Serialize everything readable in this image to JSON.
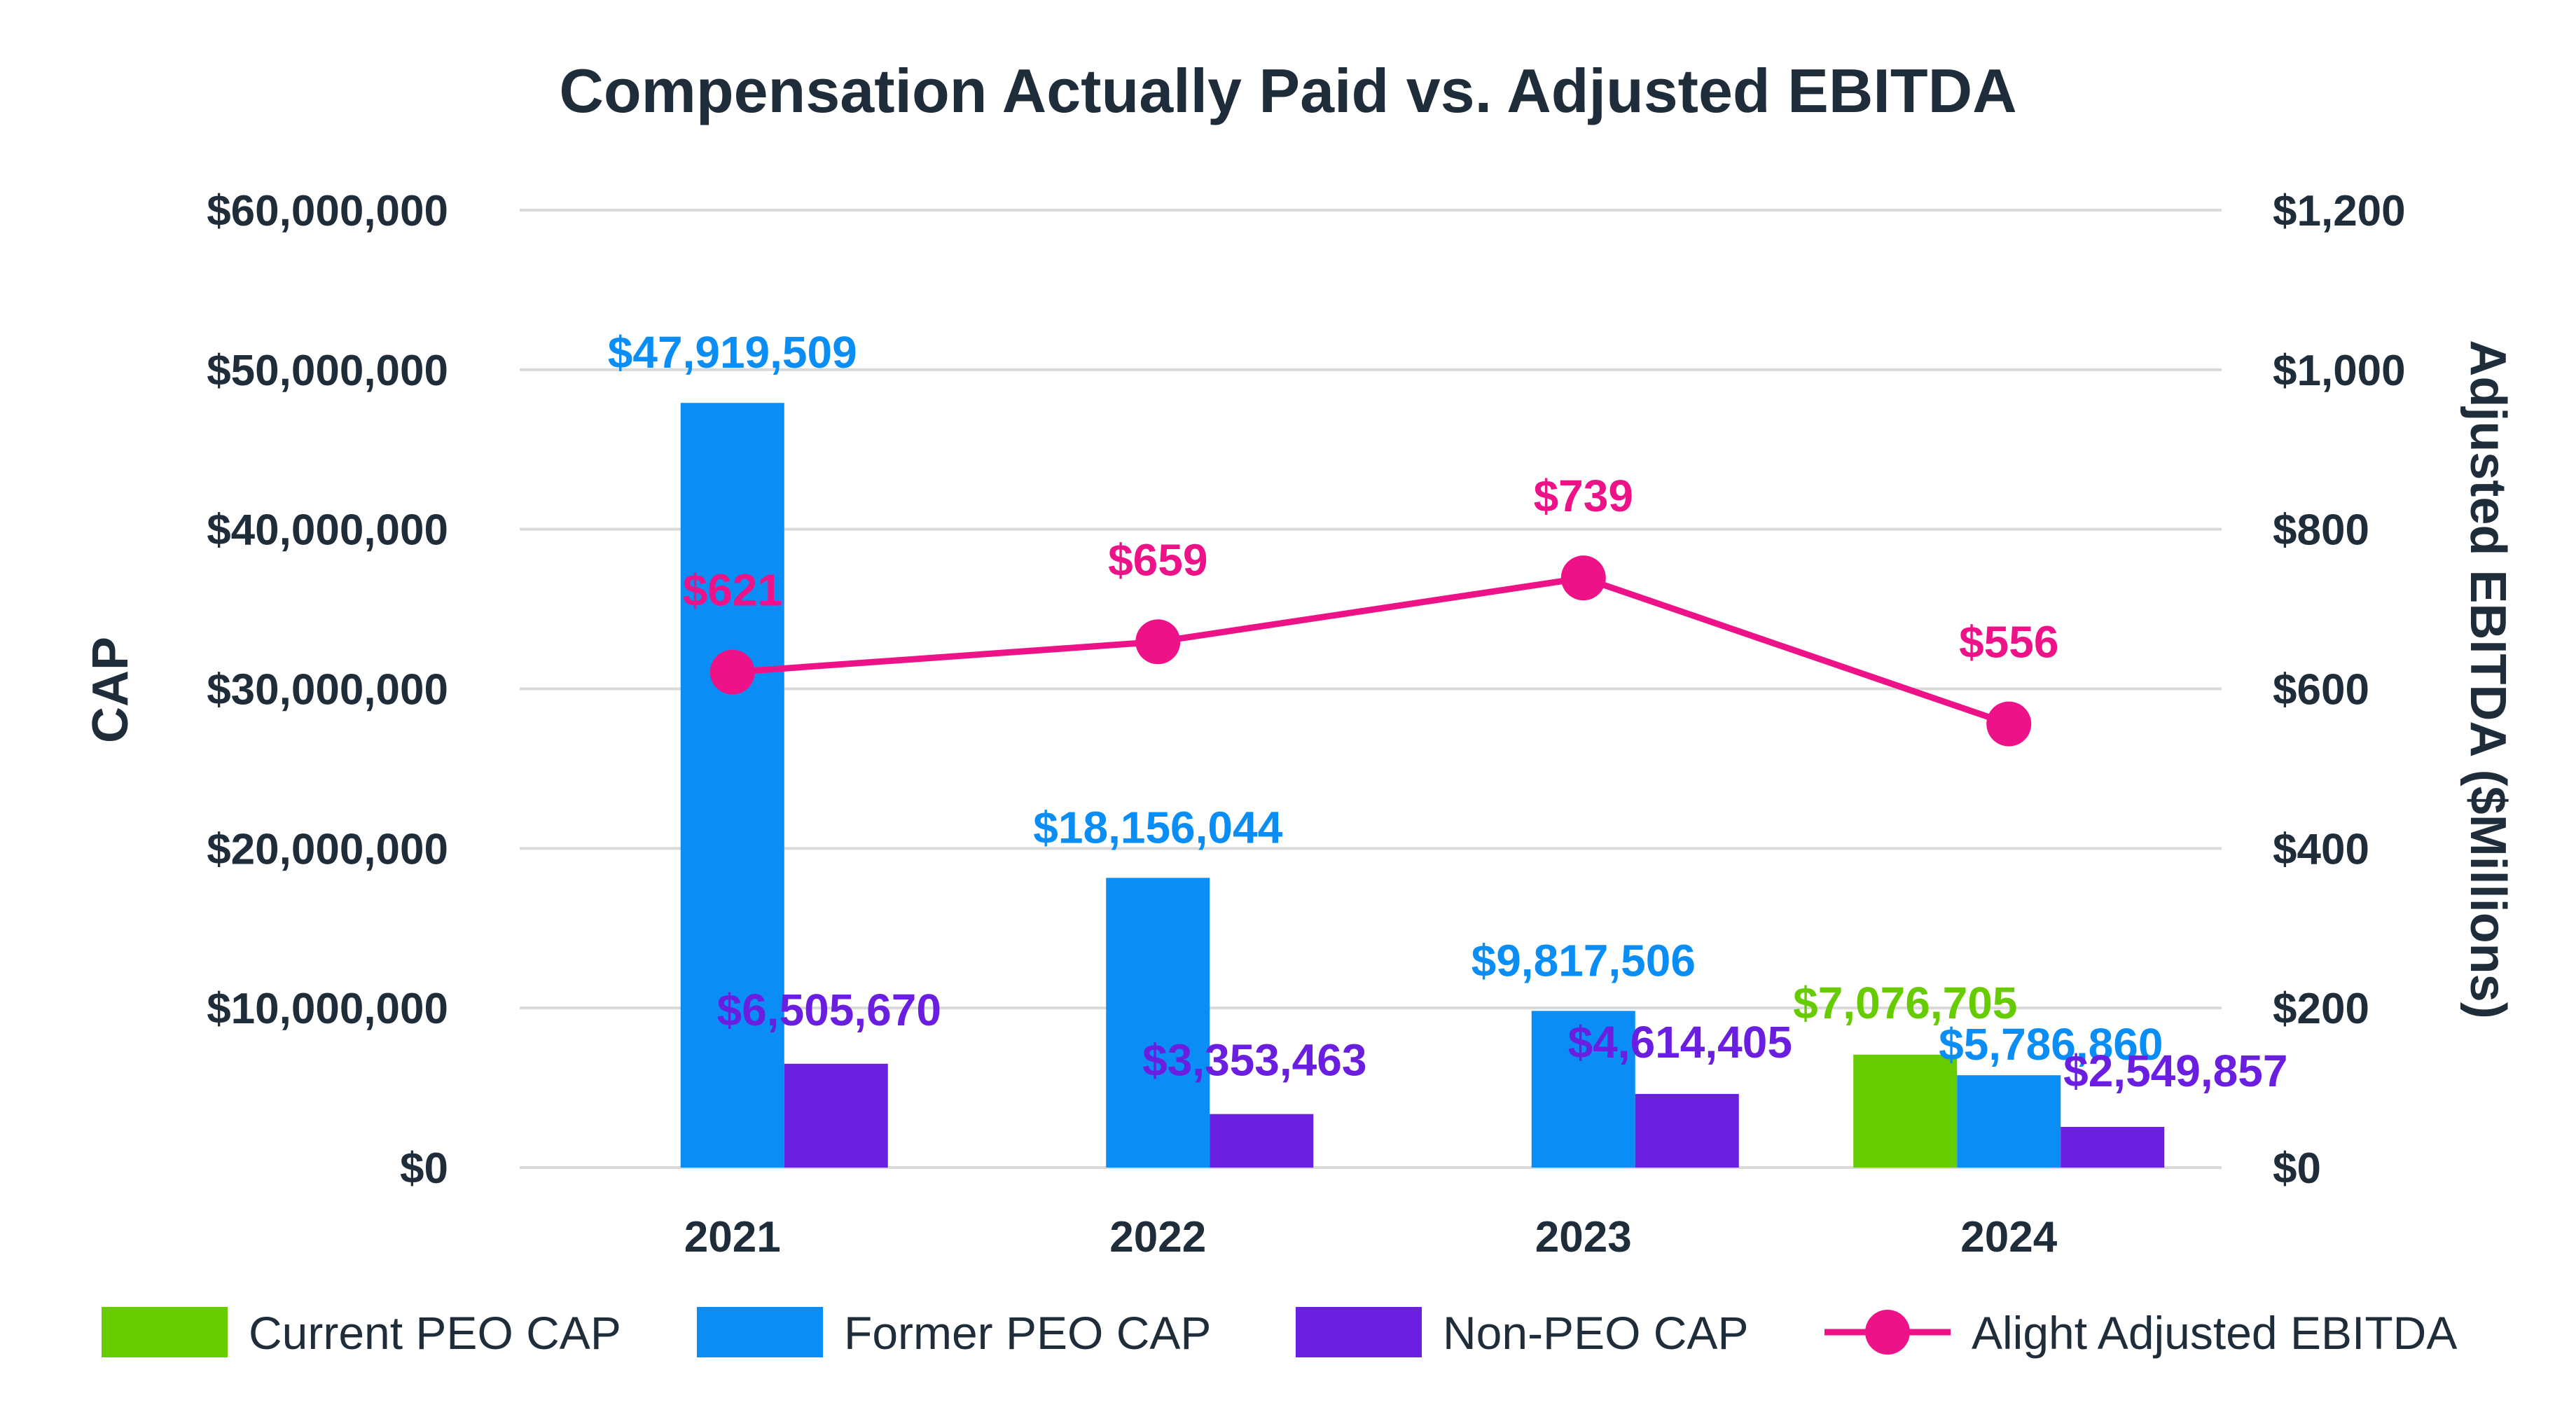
{
  "chart_data": {
    "type": "bar",
    "title": "Compensation Actually Paid vs. Adjusted EBITDA",
    "categories": [
      "2021",
      "2022",
      "2023",
      "2024"
    ],
    "ylabel": "CAP",
    "y2label": "Adjusted EBITDA ($Millions)",
    "ylim": [
      0,
      60000000
    ],
    "y2lim": [
      0,
      1200
    ],
    "yticks": [
      "$0",
      "$10,000,000",
      "$20,000,000",
      "$30,000,000",
      "$40,000,000",
      "$50,000,000",
      "$60,000,000"
    ],
    "ytick_values": [
      0,
      10000000,
      20000000,
      30000000,
      40000000,
      50000000,
      60000000
    ],
    "y2ticks": [
      "$0",
      "$200",
      "$400",
      "$600",
      "$800",
      "$1,000",
      "$1,200"
    ],
    "y2tick_values": [
      0,
      200,
      400,
      600,
      800,
      1000,
      1200
    ],
    "grid": true,
    "legend_position": "bottom",
    "series": [
      {
        "name": "Current PEO CAP",
        "kind": "bar",
        "color": "#66cc00",
        "values": [
          null,
          null,
          null,
          7076705
        ],
        "labels": [
          null,
          null,
          null,
          "$7,076,705"
        ]
      },
      {
        "name": "Former PEO CAP",
        "kind": "bar",
        "color": "#0a8ef5",
        "values": [
          47919509,
          18156044,
          9817506,
          5786860
        ],
        "labels": [
          "$47,919,509",
          "$18,156,044",
          "$9,817,506",
          "$5,786,860"
        ]
      },
      {
        "name": "Non-PEO CAP",
        "kind": "bar",
        "color": "#6a1fe0",
        "values": [
          6505670,
          3353463,
          4614405,
          2549857
        ],
        "labels": [
          "$6,505,670",
          "$3,353,463",
          "$4,614,405",
          "$2,549,857"
        ]
      },
      {
        "name": "Alight Adjusted EBITDA",
        "kind": "line",
        "axis": "right",
        "color": "#ee1289",
        "values": [
          621,
          659,
          739,
          556
        ],
        "labels": [
          "$621",
          "$659",
          "$739",
          "$556"
        ]
      }
    ]
  }
}
